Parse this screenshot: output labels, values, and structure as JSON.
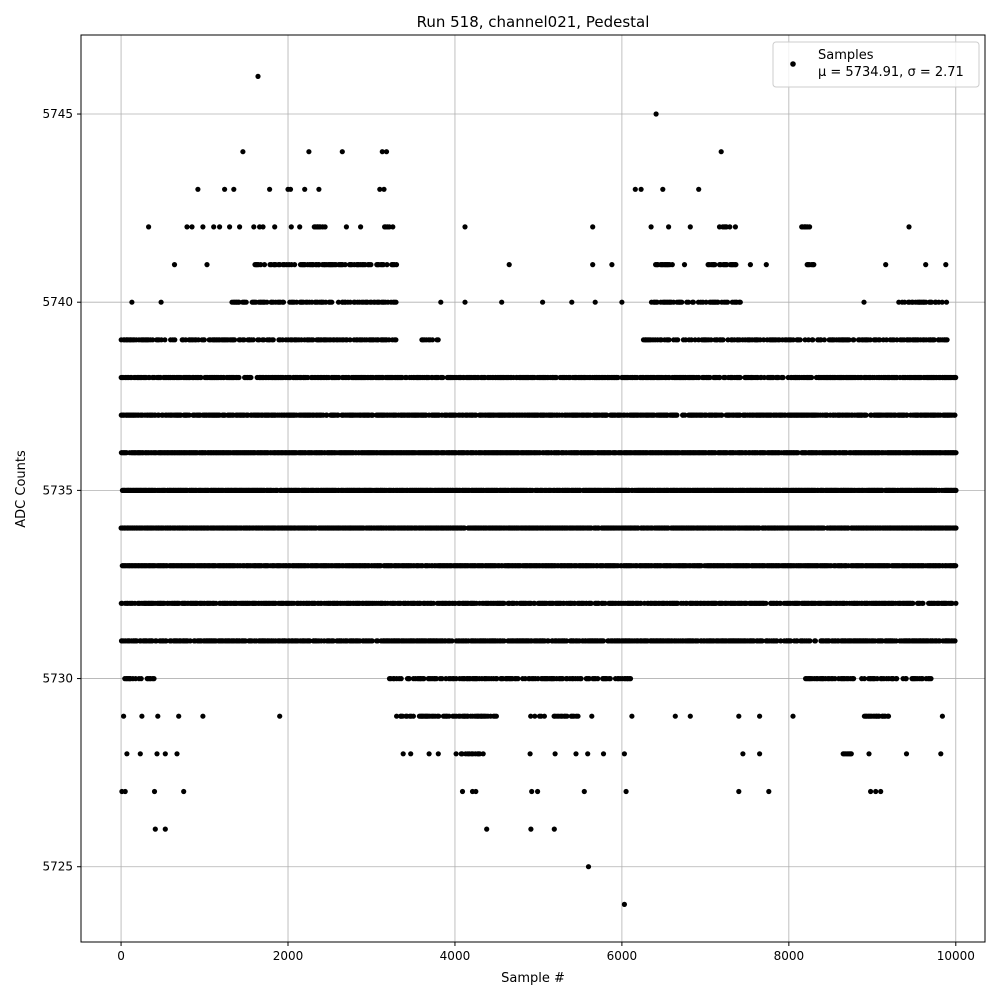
{
  "chart_data": {
    "type": "scatter",
    "title": "Run 518, channel021, Pedestal",
    "xlabel": "Sample #",
    "ylabel": "ADC Counts",
    "xlim": [
      -480,
      10350
    ],
    "ylim": [
      5723.0,
      5747.1
    ],
    "xticks": [
      0,
      2000,
      4000,
      6000,
      8000,
      10000
    ],
    "xtick_labels": [
      "0",
      "2000",
      "4000",
      "6000",
      "8000",
      "10000"
    ],
    "yticks": [
      5725,
      5730,
      5735,
      5740,
      5745
    ],
    "ytick_labels": [
      "5725",
      "5730",
      "5735",
      "5740",
      "5745"
    ],
    "grid": true,
    "legend_position": "top-right",
    "legend": {
      "label": "Samples",
      "stats": "μ = 5734.91, σ = 2.71"
    },
    "series": [
      {
        "name": "Samples",
        "color": "#000000",
        "n_samples": 10000,
        "dense_levels": [
          5731,
          5732,
          5733,
          5734,
          5735,
          5736,
          5737,
          5738
        ],
        "band_levels": [
          {
            "y": 5739,
            "ranges": [
              [
                0,
                3300
              ],
              [
                3600,
                3800
              ],
              [
                6200,
                9900
              ]
            ]
          },
          {
            "y": 5740,
            "ranges": [
              [
                1300,
                3300
              ],
              [
                6350,
                7450
              ],
              [
                9300,
                9900
              ]
            ]
          },
          {
            "y": 5741,
            "ranges": [
              [
                1600,
                3300
              ],
              [
                6400,
                6600
              ],
              [
                7000,
                7400
              ],
              [
                8200,
                8300
              ]
            ]
          },
          {
            "y": 5742,
            "ranges": [
              [
                2300,
                2450
              ],
              [
                3150,
                3250
              ],
              [
                7150,
                7300
              ],
              [
                8150,
                8250
              ]
            ]
          },
          {
            "y": 5730,
            "ranges": [
              [
                0,
                400
              ],
              [
                3200,
                6100
              ],
              [
                8200,
                9700
              ]
            ]
          },
          {
            "y": 5729,
            "ranges": [
              [
                3300,
                4500
              ],
              [
                4900,
                5500
              ],
              [
                8900,
                9200
              ]
            ]
          },
          {
            "y": 5728,
            "ranges": [
              [
                4000,
                4350
              ],
              [
                8650,
                8750
              ]
            ]
          }
        ],
        "outliers": [
          {
            "x": 1640,
            "y": 5746
          },
          {
            "x": 6410,
            "y": 5745
          },
          {
            "x": 1460,
            "y": 5744
          },
          {
            "x": 2250,
            "y": 5744
          },
          {
            "x": 2650,
            "y": 5744
          },
          {
            "x": 3130,
            "y": 5744
          },
          {
            "x": 3180,
            "y": 5744
          },
          {
            "x": 7190,
            "y": 5744
          },
          {
            "x": 920,
            "y": 5743
          },
          {
            "x": 1240,
            "y": 5743
          },
          {
            "x": 1350,
            "y": 5743
          },
          {
            "x": 1780,
            "y": 5743
          },
          {
            "x": 2000,
            "y": 5743
          },
          {
            "x": 2030,
            "y": 5743
          },
          {
            "x": 2200,
            "y": 5743
          },
          {
            "x": 2370,
            "y": 5743
          },
          {
            "x": 3100,
            "y": 5743
          },
          {
            "x": 3150,
            "y": 5743
          },
          {
            "x": 6160,
            "y": 5743
          },
          {
            "x": 6230,
            "y": 5743
          },
          {
            "x": 6490,
            "y": 5743
          },
          {
            "x": 6920,
            "y": 5743
          },
          {
            "x": 330,
            "y": 5742
          },
          {
            "x": 790,
            "y": 5742
          },
          {
            "x": 850,
            "y": 5742
          },
          {
            "x": 980,
            "y": 5742
          },
          {
            "x": 1110,
            "y": 5742
          },
          {
            "x": 1180,
            "y": 5742
          },
          {
            "x": 1300,
            "y": 5742
          },
          {
            "x": 1420,
            "y": 5742
          },
          {
            "x": 1590,
            "y": 5742
          },
          {
            "x": 1660,
            "y": 5742
          },
          {
            "x": 1700,
            "y": 5742
          },
          {
            "x": 1840,
            "y": 5742
          },
          {
            "x": 2040,
            "y": 5742
          },
          {
            "x": 2140,
            "y": 5742
          },
          {
            "x": 2700,
            "y": 5742
          },
          {
            "x": 2870,
            "y": 5742
          },
          {
            "x": 4120,
            "y": 5742
          },
          {
            "x": 5650,
            "y": 5742
          },
          {
            "x": 6350,
            "y": 5742
          },
          {
            "x": 6560,
            "y": 5742
          },
          {
            "x": 6820,
            "y": 5742
          },
          {
            "x": 7360,
            "y": 5742
          },
          {
            "x": 9440,
            "y": 5742
          },
          {
            "x": 130,
            "y": 5740
          },
          {
            "x": 480,
            "y": 5740
          },
          {
            "x": 3830,
            "y": 5740
          },
          {
            "x": 4120,
            "y": 5740
          },
          {
            "x": 4560,
            "y": 5740
          },
          {
            "x": 5050,
            "y": 5740
          },
          {
            "x": 5400,
            "y": 5740
          },
          {
            "x": 5680,
            "y": 5740
          },
          {
            "x": 6000,
            "y": 5740
          },
          {
            "x": 8900,
            "y": 5740
          },
          {
            "x": 640,
            "y": 5741
          },
          {
            "x": 1030,
            "y": 5741
          },
          {
            "x": 4650,
            "y": 5741
          },
          {
            "x": 5650,
            "y": 5741
          },
          {
            "x": 5880,
            "y": 5741
          },
          {
            "x": 6750,
            "y": 5741
          },
          {
            "x": 7540,
            "y": 5741
          },
          {
            "x": 7730,
            "y": 5741
          },
          {
            "x": 9160,
            "y": 5741
          },
          {
            "x": 9640,
            "y": 5741
          },
          {
            "x": 9880,
            "y": 5741
          },
          {
            "x": 30,
            "y": 5729
          },
          {
            "x": 250,
            "y": 5729
          },
          {
            "x": 440,
            "y": 5729
          },
          {
            "x": 690,
            "y": 5729
          },
          {
            "x": 980,
            "y": 5729
          },
          {
            "x": 1900,
            "y": 5729
          },
          {
            "x": 5640,
            "y": 5729
          },
          {
            "x": 6120,
            "y": 5729
          },
          {
            "x": 6640,
            "y": 5729
          },
          {
            "x": 6820,
            "y": 5729
          },
          {
            "x": 7400,
            "y": 5729
          },
          {
            "x": 7650,
            "y": 5729
          },
          {
            "x": 8050,
            "y": 5729
          },
          {
            "x": 9840,
            "y": 5729
          },
          {
            "x": 70,
            "y": 5728
          },
          {
            "x": 230,
            "y": 5728
          },
          {
            "x": 430,
            "y": 5728
          },
          {
            "x": 530,
            "y": 5728
          },
          {
            "x": 670,
            "y": 5728
          },
          {
            "x": 3380,
            "y": 5728
          },
          {
            "x": 3470,
            "y": 5728
          },
          {
            "x": 3690,
            "y": 5728
          },
          {
            "x": 3800,
            "y": 5728
          },
          {
            "x": 4900,
            "y": 5728
          },
          {
            "x": 5200,
            "y": 5728
          },
          {
            "x": 5450,
            "y": 5728
          },
          {
            "x": 5590,
            "y": 5728
          },
          {
            "x": 5780,
            "y": 5728
          },
          {
            "x": 6030,
            "y": 5728
          },
          {
            "x": 7450,
            "y": 5728
          },
          {
            "x": 7650,
            "y": 5728
          },
          {
            "x": 8960,
            "y": 5728
          },
          {
            "x": 9410,
            "y": 5728
          },
          {
            "x": 9820,
            "y": 5728
          },
          {
            "x": 10,
            "y": 5727
          },
          {
            "x": 50,
            "y": 5727
          },
          {
            "x": 400,
            "y": 5727
          },
          {
            "x": 750,
            "y": 5727
          },
          {
            "x": 4090,
            "y": 5727
          },
          {
            "x": 4210,
            "y": 5727
          },
          {
            "x": 4250,
            "y": 5727
          },
          {
            "x": 4920,
            "y": 5727
          },
          {
            "x": 4990,
            "y": 5727
          },
          {
            "x": 5550,
            "y": 5727
          },
          {
            "x": 6050,
            "y": 5727
          },
          {
            "x": 7400,
            "y": 5727
          },
          {
            "x": 7760,
            "y": 5727
          },
          {
            "x": 8980,
            "y": 5727
          },
          {
            "x": 9040,
            "y": 5727
          },
          {
            "x": 9100,
            "y": 5727
          },
          {
            "x": 410,
            "y": 5726
          },
          {
            "x": 530,
            "y": 5726
          },
          {
            "x": 4380,
            "y": 5726
          },
          {
            "x": 4910,
            "y": 5726
          },
          {
            "x": 5190,
            "y": 5726
          },
          {
            "x": 5600,
            "y": 5725
          },
          {
            "x": 6030,
            "y": 5724
          }
        ]
      }
    ]
  }
}
